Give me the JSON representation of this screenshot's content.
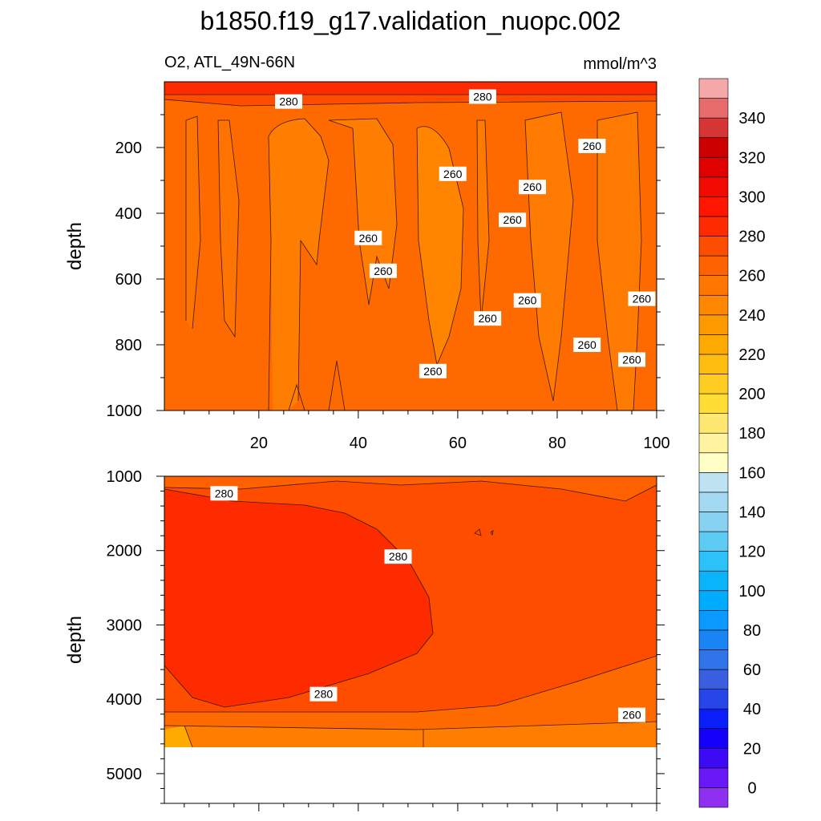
{
  "title": "b1850.f19_g17.validation_nuopc.002",
  "subtitle_left": "O2, ATL_49N-66N",
  "subtitle_right": "mmol/m^3",
  "chart_data": [
    {
      "type": "contour",
      "panel": "upper",
      "variable": "O2",
      "region": "ATL_49N-66N",
      "units": "mmol/m^3",
      "xlabel": "",
      "ylabel": "depth",
      "xlim": [
        1,
        100
      ],
      "ylim": [
        1000,
        0
      ],
      "x_ticks": [
        20,
        40,
        60,
        80,
        100
      ],
      "y_ticks": [
        200,
        400,
        600,
        800,
        1000
      ],
      "contour_labels": [
        {
          "text": "280",
          "x": 26,
          "depth": 60
        },
        {
          "text": "280",
          "x": 65,
          "depth": 45
        },
        {
          "text": "260",
          "x": 87,
          "depth": 195
        },
        {
          "text": "260",
          "x": 59,
          "depth": 280
        },
        {
          "text": "260",
          "x": 75,
          "depth": 320
        },
        {
          "text": "260",
          "x": 71,
          "depth": 420
        },
        {
          "text": "260",
          "x": 42,
          "depth": 475
        },
        {
          "text": "260",
          "x": 45,
          "depth": 575
        },
        {
          "text": "260",
          "x": 74,
          "depth": 665
        },
        {
          "text": "260",
          "x": 97,
          "depth": 660
        },
        {
          "text": "260",
          "x": 66,
          "depth": 720
        },
        {
          "text": "260",
          "x": 86,
          "depth": 800
        },
        {
          "text": "260",
          "x": 95,
          "depth": 845
        },
        {
          "text": "260",
          "x": 55,
          "depth": 880
        }
      ]
    },
    {
      "type": "contour",
      "panel": "lower",
      "variable": "O2",
      "units": "mmol/m^3",
      "xlabel": "",
      "ylabel": "depth",
      "xlim": [
        1,
        100
      ],
      "ylim": [
        5400,
        1000
      ],
      "y_ticks": [
        1000,
        2000,
        3000,
        4000,
        5000
      ],
      "contour_labels": [
        {
          "text": "280",
          "x": 13,
          "depth": 1230
        },
        {
          "text": "280",
          "x": 48,
          "depth": 2080
        },
        {
          "text": "280",
          "x": 33,
          "depth": 3930
        },
        {
          "text": "260",
          "x": 95,
          "depth": 4210
        }
      ]
    }
  ],
  "colorbar": {
    "labels": [
      "0",
      "20",
      "40",
      "60",
      "80",
      "100",
      "120",
      "140",
      "160",
      "180",
      "200",
      "220",
      "240",
      "260",
      "280",
      "300",
      "320",
      "340"
    ],
    "colors": [
      "#8f2ff0",
      "#6a18f7",
      "#3d0af5",
      "#1500fa",
      "#0a1efa",
      "#2746ea",
      "#3a5ee0",
      "#2f74e8",
      "#1a84f5",
      "#0b98ff",
      "#00acff",
      "#0ab4fa",
      "#2cc2f7",
      "#5ecbf5",
      "#86d2f0",
      "#a4d9f3",
      "#bde2f2",
      "#ffffc6",
      "#fff3a0",
      "#ffe872",
      "#ffdd33",
      "#ffcc22",
      "#ffbd10",
      "#ffaa00",
      "#ff9900",
      "#ff8800",
      "#ff7700",
      "#ff6200",
      "#ff4d00",
      "#ff2b00",
      "#ff1500",
      "#f20a00",
      "#e00000",
      "#cc0000",
      "#d53535",
      "#e86b6b",
      "#f4a8a8"
    ]
  }
}
